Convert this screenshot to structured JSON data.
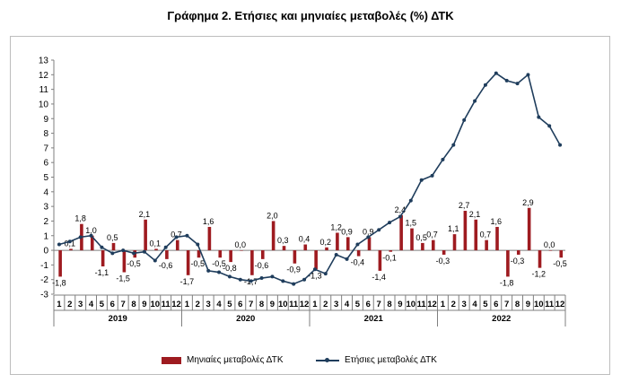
{
  "title": "Γράφημα 2. Ετήσιες και μηνιαίες μεταβολές (%) ΔΤΚ",
  "chart_data": {
    "type": "bar+line",
    "ylim": [
      -3,
      13
    ],
    "yticks": [
      -3,
      -2,
      -1,
      0,
      1,
      2,
      3,
      4,
      5,
      6,
      7,
      8,
      9,
      10,
      11,
      12,
      13
    ],
    "years": [
      "2019",
      "2020",
      "2021",
      "2022"
    ],
    "month_labels": [
      "1",
      "2",
      "3",
      "4",
      "5",
      "6",
      "7",
      "8",
      "9",
      "10",
      "11",
      "12"
    ],
    "series": [
      {
        "name": "Μηνιαίες μεταβολές ΔΤΚ",
        "kind": "bar",
        "color": "#9e1b20",
        "values": [
          -1.8,
          0.1,
          1.8,
          1.0,
          -1.1,
          0.5,
          -1.5,
          -0.5,
          2.1,
          0.1,
          -0.6,
          0.7,
          -1.7,
          -0.5,
          1.6,
          -0.5,
          -0.8,
          0.0,
          -1.7,
          -0.6,
          2.0,
          0.3,
          -0.9,
          0.4,
          -1.3,
          0.2,
          1.2,
          0.9,
          -0.4,
          0.9,
          -1.4,
          -0.1,
          2.4,
          1.5,
          0.5,
          0.7,
          -0.3,
          1.1,
          2.7,
          2.1,
          0.7,
          1.6,
          -1.8,
          -0.3,
          2.9,
          -1.2,
          0.0,
          -0.5
        ],
        "labels": [
          "-1,8",
          "0,1",
          "1,8",
          "1,0",
          "-1,1",
          "0,5",
          "-1,5",
          "-0,5",
          "2,1",
          "0,1",
          "-0,6",
          "0,7",
          "-1,7",
          "-0,5",
          "1,6",
          "-0,5",
          "-0,8",
          "0,0",
          "-1,7",
          "-0,6",
          "2,0",
          "0,3",
          "-0,9",
          "0,4",
          "-1,3",
          "0,2",
          "1,2",
          "0,9",
          "-0,4",
          "0,9",
          "-1,4",
          "-0,1",
          "2,4",
          "1,5",
          "0,5",
          "0,7",
          "-0,3",
          "1,1",
          "2,7",
          "2,1",
          "0,7",
          "1,6",
          "-1,8",
          "-0,3",
          "2,9",
          "-1,2",
          "0,0",
          "-0,5"
        ]
      },
      {
        "name": "Ετήσιες μεταβολές ΔΤΚ",
        "kind": "line",
        "color": "#1f3d5c",
        "values": [
          0.4,
          0.6,
          0.9,
          1.0,
          0.2,
          -0.2,
          0.0,
          -0.2,
          -0.1,
          -0.7,
          0.2,
          0.9,
          1.0,
          0.4,
          -1.4,
          -1.5,
          -1.8,
          -2.0,
          -2.1,
          -1.9,
          -1.8,
          -2.1,
          -2.3,
          -2.0,
          -1.3,
          -1.6,
          -0.3,
          -0.6,
          0.4,
          0.9,
          1.4,
          1.9,
          2.3,
          3.4,
          4.8,
          5.1,
          6.2,
          7.2,
          8.9,
          10.2,
          11.3,
          12.1,
          11.6,
          11.4,
          12.0,
          9.1,
          8.5,
          7.2
        ]
      }
    ]
  },
  "legend": {
    "bars_label": "Μηνιαίες μεταβολές ΔΤΚ",
    "line_label": "Ετήσιες μεταβολές ΔΤΚ"
  }
}
